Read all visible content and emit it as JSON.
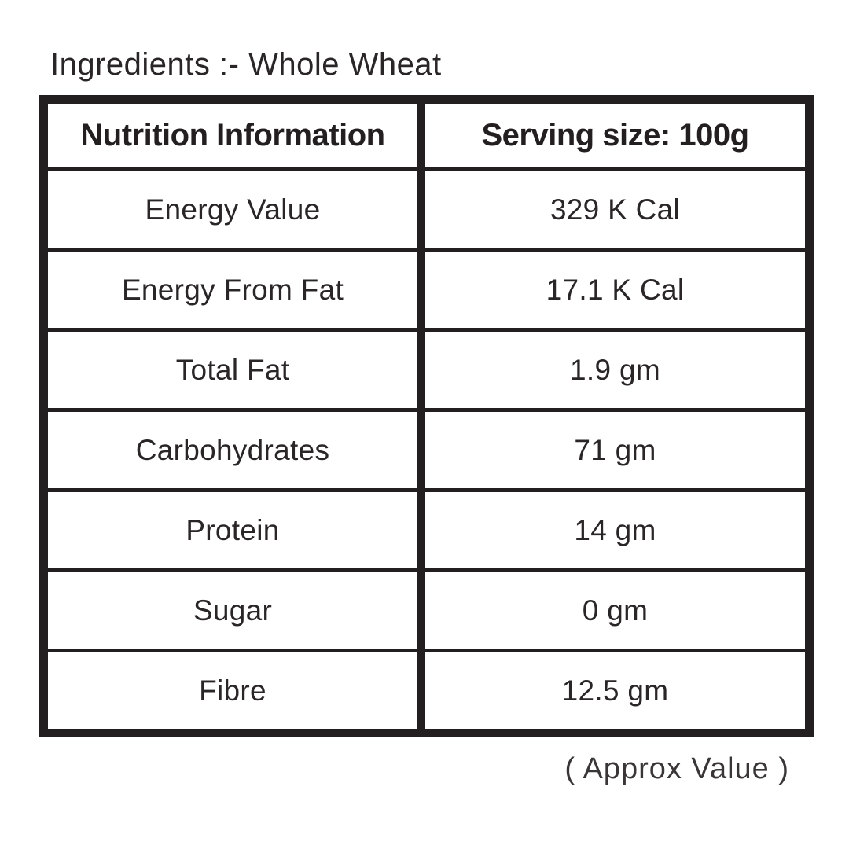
{
  "page": {
    "ingredients_label": "Ingredients :- Whole Wheat",
    "approx_note": "( Approx Value )"
  },
  "table": {
    "header": {
      "left": "Nutrition Information",
      "right": "Serving size: 100g"
    },
    "rows": [
      {
        "label": "Energy Value",
        "value": "329 K Cal"
      },
      {
        "label": "Energy From Fat",
        "value": "17.1 K Cal"
      },
      {
        "label": "Total Fat",
        "value": "1.9 gm"
      },
      {
        "label": "Carbohydrates",
        "value": "71 gm"
      },
      {
        "label": "Protein",
        "value": "14 gm"
      },
      {
        "label": "Sugar",
        "value": "0 gm"
      },
      {
        "label": "Fibre",
        "value": "12.5 gm"
      }
    ]
  },
  "colors": {
    "ink": "#231f20",
    "body_text": "#2a2627",
    "background": "#ffffff"
  }
}
